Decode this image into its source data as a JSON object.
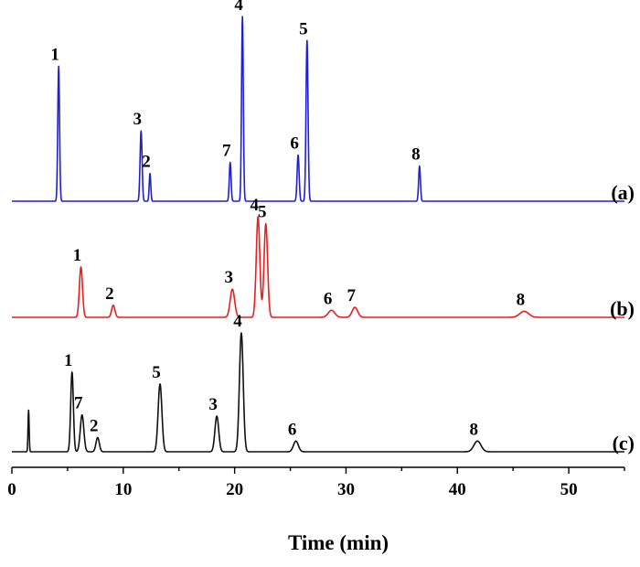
{
  "chart_data": {
    "type": "line",
    "xlabel": "Time (min)",
    "xlim": [
      0,
      55
    ],
    "xticks": [
      0,
      10,
      20,
      30,
      40,
      50
    ],
    "grid": false,
    "baseline_level": 0.06,
    "series": [
      {
        "name": "(a)",
        "color": "#1f1fd6",
        "peaks": [
          {
            "label": "1",
            "t": 4.2,
            "height": 0.73,
            "width": 0.08
          },
          {
            "label": "3",
            "t": 11.6,
            "height": 0.38,
            "width": 0.09
          },
          {
            "label": "2",
            "t": 12.4,
            "height": 0.15,
            "width": 0.07
          },
          {
            "label": "7",
            "t": 19.6,
            "height": 0.21,
            "width": 0.08
          },
          {
            "label": "4",
            "t": 20.7,
            "height": 1.0,
            "width": 0.08
          },
          {
            "label": "6",
            "t": 25.7,
            "height": 0.25,
            "width": 0.09
          },
          {
            "label": "5",
            "t": 26.5,
            "height": 0.87,
            "width": 0.09
          },
          {
            "label": "8",
            "t": 36.6,
            "height": 0.19,
            "width": 0.08
          }
        ]
      },
      {
        "name": "(b)",
        "color": "#ee1c1c",
        "peaks": [
          {
            "label": "1",
            "t": 6.2,
            "height": 0.5,
            "width": 0.14
          },
          {
            "label": "2",
            "t": 9.1,
            "height": 0.12,
            "width": 0.15
          },
          {
            "label": "3",
            "t": 19.8,
            "height": 0.28,
            "width": 0.2
          },
          {
            "label": "4",
            "t": 22.1,
            "height": 1.0,
            "width": 0.16
          },
          {
            "label": "5",
            "t": 22.8,
            "height": 0.93,
            "width": 0.16
          },
          {
            "label": "6",
            "t": 28.7,
            "height": 0.07,
            "width": 0.3
          },
          {
            "label": "7",
            "t": 30.8,
            "height": 0.1,
            "width": 0.25
          },
          {
            "label": "8",
            "t": 46.0,
            "height": 0.06,
            "width": 0.4
          }
        ]
      },
      {
        "name": "(c)",
        "color": "#111111",
        "peaks": [
          {
            "label": "",
            "t": 1.5,
            "height": 0.35,
            "width": 0.05
          },
          {
            "label": "1",
            "t": 5.4,
            "height": 0.67,
            "width": 0.12
          },
          {
            "label": "7",
            "t": 6.3,
            "height": 0.31,
            "width": 0.16
          },
          {
            "label": "2",
            "t": 7.7,
            "height": 0.12,
            "width": 0.15
          },
          {
            "label": "5",
            "t": 13.3,
            "height": 0.57,
            "width": 0.17
          },
          {
            "label": "3",
            "t": 18.4,
            "height": 0.3,
            "width": 0.17
          },
          {
            "label": "4",
            "t": 20.6,
            "height": 1.0,
            "width": 0.17
          },
          {
            "label": "6",
            "t": 25.5,
            "height": 0.09,
            "width": 0.22
          },
          {
            "label": "8",
            "t": 41.8,
            "height": 0.09,
            "width": 0.32
          }
        ]
      }
    ]
  }
}
